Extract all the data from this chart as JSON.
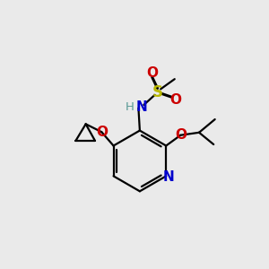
{
  "bg_color": "#eaeaea",
  "bond_color": "#000000",
  "N_color": "#0000cc",
  "O_color": "#cc0000",
  "S_color": "#b8b800",
  "H_color": "#5a9a96",
  "figsize": [
    3.0,
    3.0
  ],
  "dpi": 100,
  "xlim": [
    0,
    10
  ],
  "ylim": [
    0,
    10
  ]
}
